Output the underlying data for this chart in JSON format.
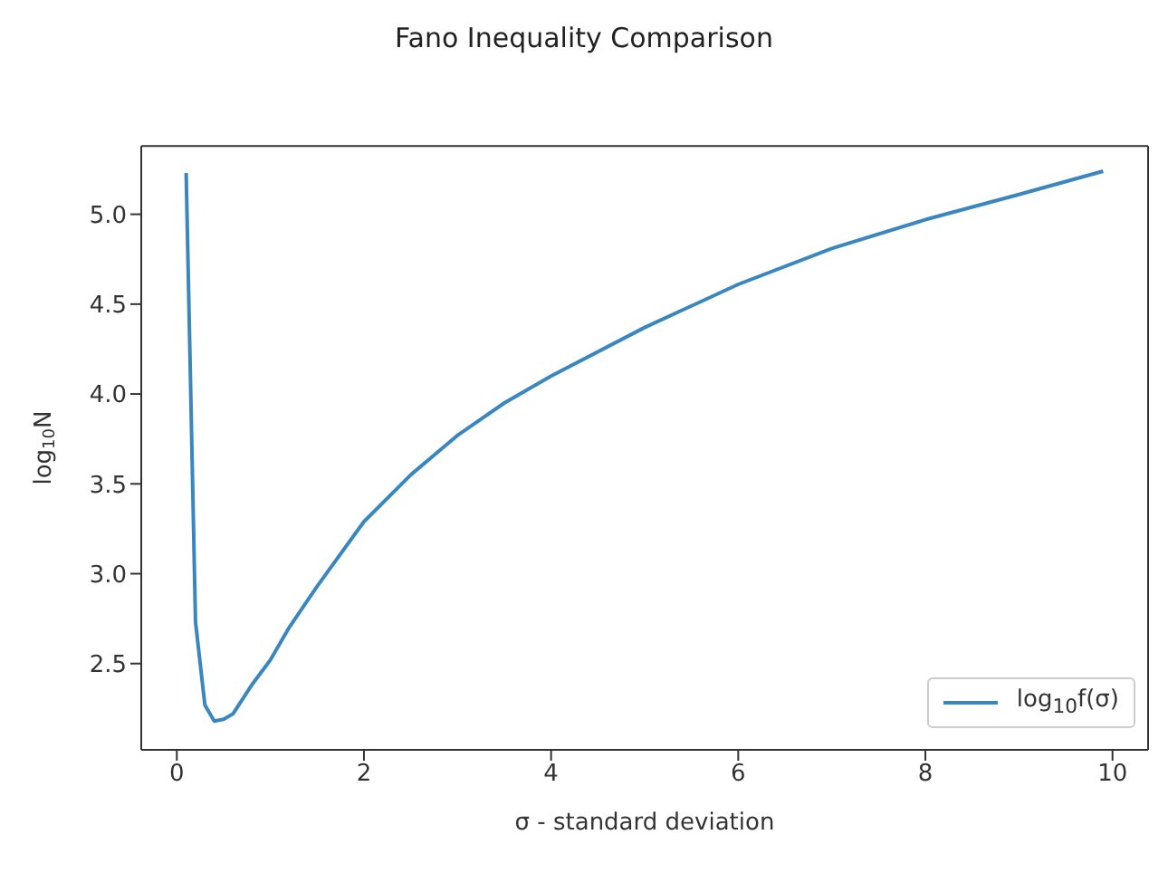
{
  "chart_data": {
    "type": "line",
    "title": "Fano Inequality Comparison",
    "xlabel": "σ - standard deviation",
    "ylabel": "log$_{10}$N",
    "x": [
      0.1,
      0.2,
      0.3,
      0.4,
      0.5,
      0.6,
      0.8,
      1,
      1.2,
      1.5,
      2,
      2.5,
      3,
      3.5,
      4,
      5,
      6,
      7,
      8,
      9,
      9.9
    ],
    "series": [
      {
        "name": "log$_{10}$f(σ)",
        "color": "#3a87c0",
        "values": [
          5.23,
          2.73,
          2.27,
          2.18,
          2.19,
          2.22,
          2.38,
          2.52,
          2.7,
          2.93,
          3.29,
          3.55,
          3.77,
          3.95,
          4.1,
          4.37,
          4.61,
          4.81,
          4.97,
          5.11,
          5.24
        ]
      }
    ],
    "xlim": [
      -0.38,
      10.38
    ],
    "ylim": [
      2.02,
      5.38
    ],
    "xticks": [
      0,
      2,
      4,
      6,
      8,
      10
    ],
    "yticks": [
      2.5,
      {
        "value": 3,
        "label": "3.0"
      },
      3.5,
      {
        "value": 4,
        "label": "4.0"
      },
      4.5,
      {
        "value": 5,
        "label": "5.0"
      }
    ],
    "grid": false,
    "legend": "bottom right",
    "marker": "none",
    "line_style": "solid"
  }
}
